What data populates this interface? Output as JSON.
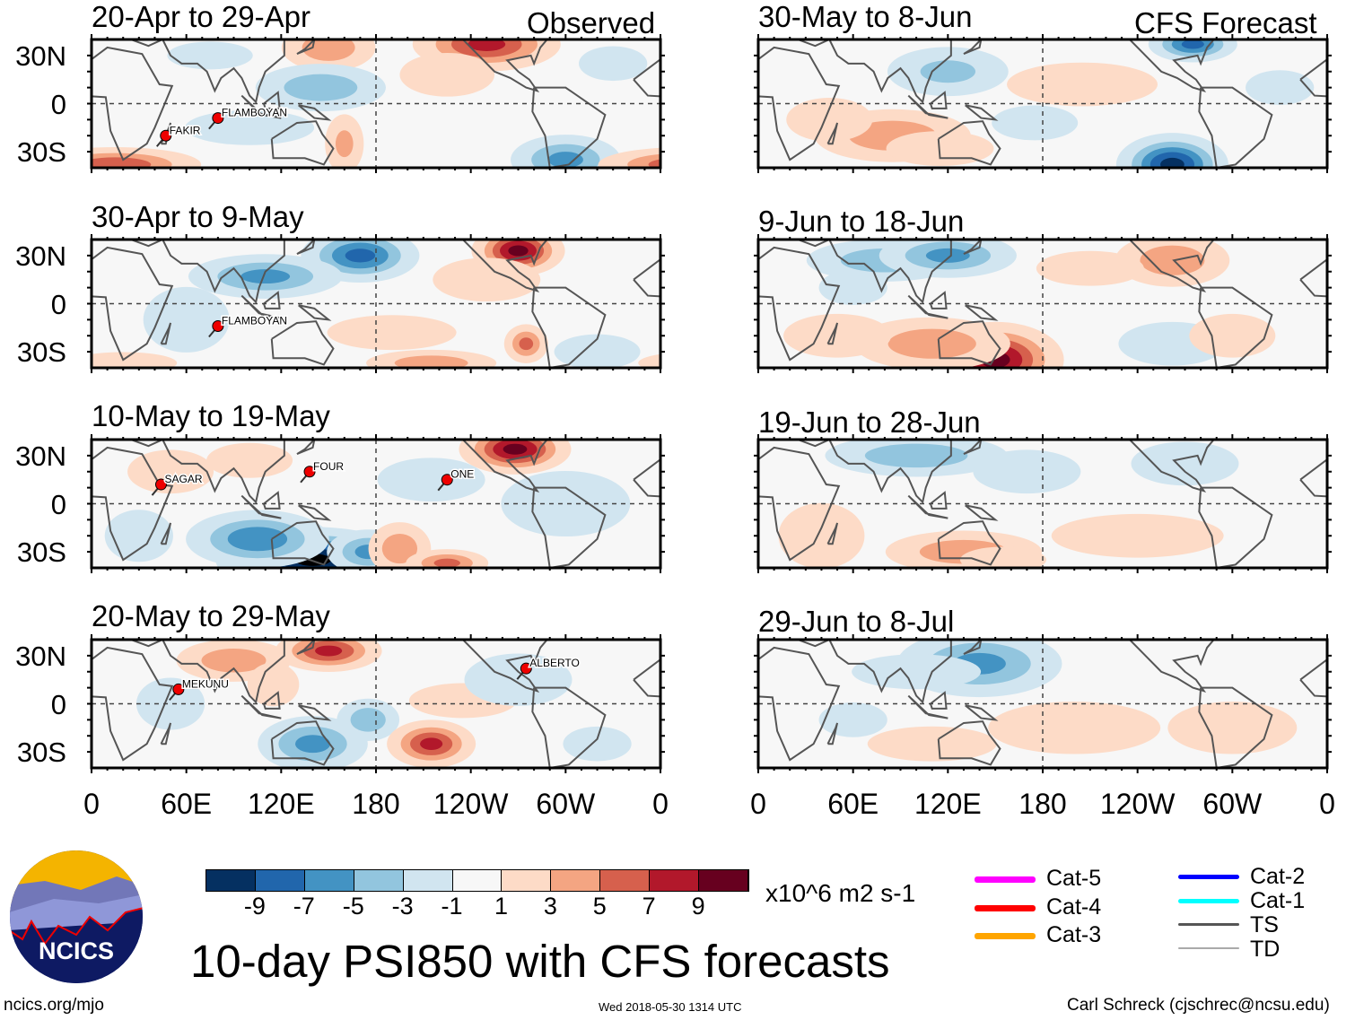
{
  "headers": {
    "left": "Observed",
    "right": "CFS Forecast"
  },
  "panels": [
    {
      "title": "20-Apr to 29-Apr",
      "storms": [
        "FAKIR",
        "FLAMBOYAN"
      ]
    },
    {
      "title": "30-Apr to 9-May",
      "storms": [
        "FLAMBOYAN"
      ]
    },
    {
      "title": "10-May to 19-May",
      "storms": [
        "SAGAR",
        "FOUR",
        "ONE"
      ]
    },
    {
      "title": "20-May to 29-May",
      "storms": [
        "MEKUNU",
        "ALBERTO"
      ]
    },
    {
      "title": "30-May to 8-Jun",
      "storms": []
    },
    {
      "title": "9-Jun to 18-Jun",
      "storms": []
    },
    {
      "title": "19-Jun to 28-Jun",
      "storms": []
    },
    {
      "title": "29-Jun to 8-Jul",
      "storms": []
    }
  ],
  "lat_labels": [
    "30N",
    "0",
    "30S"
  ],
  "lon_labels": [
    "0",
    "60E",
    "120E",
    "180",
    "120W",
    "60W",
    "0"
  ],
  "colorbar": {
    "colors": [
      "#053061",
      "#2166ac",
      "#4393c3",
      "#92c5de",
      "#d1e5f0",
      "#f7f7f7",
      "#fddbc7",
      "#f4a582",
      "#d6604d",
      "#b2182b",
      "#67001f"
    ],
    "labels": [
      "-9",
      "-7",
      "-5",
      "-3",
      "-1",
      "1",
      "3",
      "5",
      "7",
      "9"
    ],
    "units": "x10^6 m2 s-1"
  },
  "legend": [
    {
      "label": "Cat-5",
      "color": "#ff00ff"
    },
    {
      "label": "Cat-4",
      "color": "#ff0000"
    },
    {
      "label": "Cat-3",
      "color": "#ffa500"
    },
    {
      "label": "Cat-2",
      "color": "#0000ff"
    },
    {
      "label": "Cat-1",
      "color": "#00ffff"
    },
    {
      "label": "TS",
      "color": "#555555"
    },
    {
      "label": "TD",
      "color": "#aaaaaa"
    }
  ],
  "logo_text": "NCICS",
  "title": "10-day PSI850 with CFS forecasts",
  "footer": {
    "left": "ncics.org/mjo",
    "center": "Wed 2018-05-30 1314 UTC",
    "right": "Carl Schreck (cjschrec@ncsu.edu)"
  }
}
